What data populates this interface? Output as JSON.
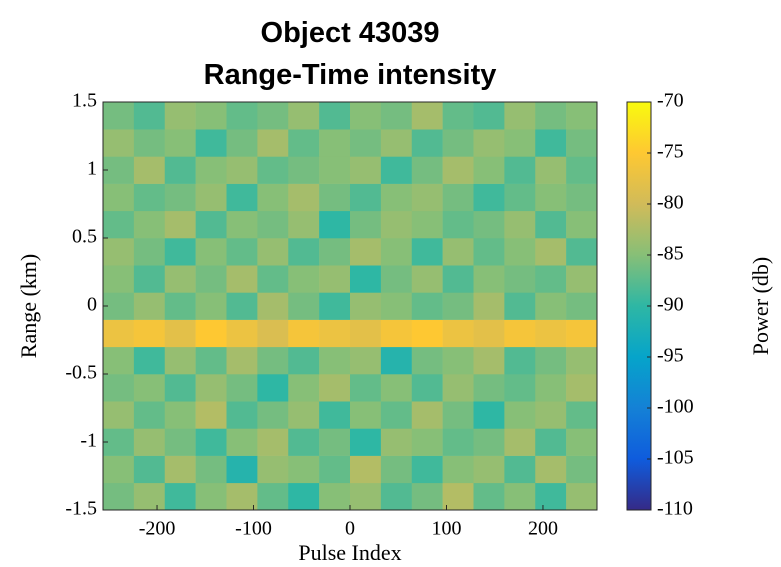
{
  "chart_data": {
    "type": "heatmap",
    "title": [
      "Object 43039",
      "Range-Time intensity"
    ],
    "xlabel": "Pulse Index",
    "ylabel": "Range (km)",
    "zlabel": "Power (db)",
    "x": [
      -240,
      -208,
      -176,
      -144,
      -112,
      -80,
      -48,
      -16,
      16,
      48,
      80,
      112,
      144,
      176,
      208,
      240
    ],
    "y": [
      -1.4,
      -1.2,
      -1.0,
      -0.8,
      -0.6,
      -0.4,
      -0.2,
      0,
      0.2,
      0.4,
      0.6,
      0.8,
      1.0,
      1.2,
      1.4
    ],
    "z": [
      [
        -86,
        -84,
        -89,
        -85,
        -83,
        -87,
        -90,
        -85,
        -84,
        -88,
        -86,
        -82,
        -87,
        -85,
        -89,
        -84
      ],
      [
        -85,
        -88,
        -83,
        -86,
        -91,
        -84,
        -85,
        -87,
        -82,
        -86,
        -89,
        -85,
        -84,
        -88,
        -83,
        -86
      ],
      [
        -87,
        -84,
        -86,
        -89,
        -85,
        -83,
        -88,
        -86,
        -90,
        -84,
        -85,
        -87,
        -86,
        -83,
        -88,
        -85
      ],
      [
        -84,
        -87,
        -85,
        -82,
        -88,
        -86,
        -84,
        -89,
        -85,
        -87,
        -83,
        -86,
        -90,
        -85,
        -84,
        -87
      ],
      [
        -86,
        -85,
        -88,
        -84,
        -86,
        -90,
        -85,
        -83,
        -87,
        -85,
        -88,
        -84,
        -86,
        -87,
        -85,
        -83
      ],
      [
        -85,
        -89,
        -84,
        -87,
        -83,
        -86,
        -88,
        -85,
        -84,
        -91,
        -86,
        -85,
        -83,
        -88,
        -86,
        -84
      ],
      [
        -77,
        -76,
        -78,
        -75,
        -77,
        -79,
        -76,
        -77,
        -78,
        -76,
        -75,
        -77,
        -78,
        -76,
        -77,
        -76
      ],
      [
        -86,
        -84,
        -87,
        -85,
        -88,
        -83,
        -86,
        -89,
        -84,
        -85,
        -87,
        -86,
        -83,
        -88,
        -85,
        -86
      ],
      [
        -85,
        -88,
        -84,
        -86,
        -83,
        -87,
        -85,
        -84,
        -90,
        -86,
        -84,
        -88,
        -85,
        -86,
        -87,
        -84
      ],
      [
        -84,
        -86,
        -89,
        -85,
        -87,
        -84,
        -88,
        -86,
        -83,
        -85,
        -89,
        -84,
        -87,
        -85,
        -83,
        -88
      ],
      [
        -87,
        -85,
        -83,
        -88,
        -85,
        -86,
        -84,
        -90,
        -86,
        -84,
        -85,
        -87,
        -86,
        -84,
        -88,
        -85
      ],
      [
        -85,
        -87,
        -86,
        -84,
        -89,
        -85,
        -83,
        -86,
        -88,
        -85,
        -84,
        -86,
        -89,
        -87,
        -85,
        -86
      ],
      [
        -86,
        -83,
        -88,
        -85,
        -84,
        -87,
        -86,
        -85,
        -84,
        -89,
        -86,
        -83,
        -85,
        -88,
        -84,
        -87
      ],
      [
        -84,
        -86,
        -85,
        -89,
        -86,
        -83,
        -87,
        -85,
        -86,
        -84,
        -88,
        -86,
        -84,
        -85,
        -89,
        -86
      ],
      [
        -86,
        -88,
        -84,
        -85,
        -87,
        -86,
        -84,
        -88,
        -85,
        -86,
        -83,
        -87,
        -88,
        -84,
        -86,
        -85
      ]
    ],
    "xlim": [
      -256,
      256
    ],
    "xticks": [
      -200,
      -100,
      0,
      100,
      200
    ],
    "ylim": [
      -1.5,
      1.5
    ],
    "yticks": [
      -1.5,
      -1,
      -0.5,
      0,
      0.5,
      1,
      1.5
    ],
    "zlim": [
      -110,
      -70
    ],
    "zticks": [
      -110,
      -105,
      -100,
      -95,
      -90,
      -85,
      -80,
      -75,
      -70
    ],
    "colormap": [
      "#352a87",
      "#0f5cdd",
      "#1481d6",
      "#06a4ca",
      "#2eb7a4",
      "#87bf77",
      "#d1bb59",
      "#fec832",
      "#f9fb0e"
    ]
  }
}
